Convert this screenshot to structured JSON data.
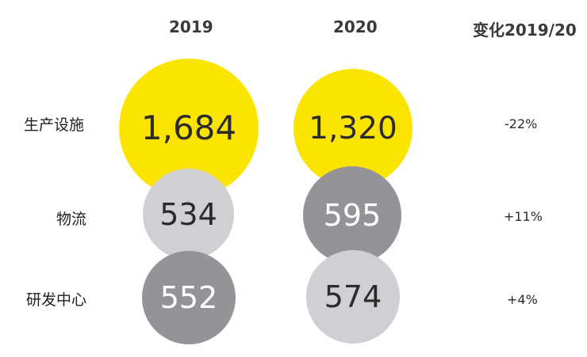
{
  "chart_data": {
    "type": "bubble-table",
    "columns": [
      "2019",
      "2020",
      "变化2019/20"
    ],
    "rows": [
      {
        "label": "生产设施",
        "values": [
          1684,
          1320
        ],
        "display": [
          "1,684",
          "1,320"
        ],
        "change": "-22%"
      },
      {
        "label": "物流",
        "values": [
          534,
          595
        ],
        "display": [
          "534",
          "595"
        ],
        "change": "+11%"
      },
      {
        "label": "研发中心",
        "values": [
          552,
          574
        ],
        "display": [
          "552",
          "574"
        ],
        "change": "+4%"
      }
    ]
  },
  "colors": {
    "highlight": "#fbe500",
    "light_grey": "#cfcfd4",
    "dark_grey": "#949498",
    "text_dark": "#2b2b2b",
    "text_white": "#ffffff"
  }
}
